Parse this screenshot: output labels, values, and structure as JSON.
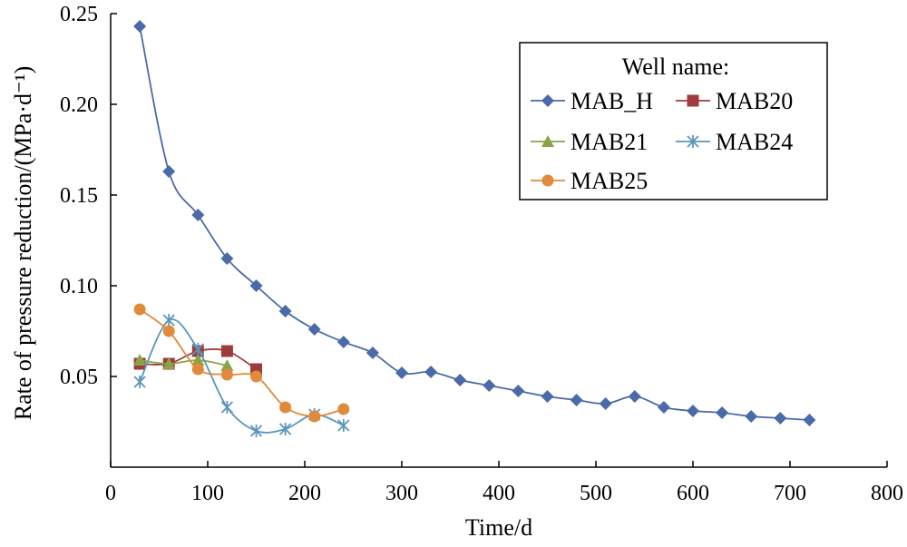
{
  "chart_data": {
    "type": "line",
    "title": "",
    "xlabel": "Time/d",
    "ylabel": "Rate of pressure reduction/(MPa·d⁻¹)",
    "xlim": [
      0,
      800
    ],
    "ylim": [
      0,
      0.25
    ],
    "x_ticks": [
      "0",
      "100",
      "200",
      "300",
      "400",
      "500",
      "600",
      "700",
      "800"
    ],
    "y_ticks": [
      "0.05",
      "0.10",
      "0.15",
      "0.20",
      "0.25"
    ],
    "grid": false,
    "legend": {
      "title": "Well name:",
      "placement": "top-right"
    },
    "series": [
      {
        "name": "MAB_H",
        "color": "#4a6aa8",
        "marker": "diamond",
        "x": [
          30,
          60,
          90,
          120,
          150,
          180,
          210,
          240,
          270,
          300,
          330,
          360,
          390,
          420,
          450,
          480,
          510,
          540,
          570,
          600,
          630,
          660,
          690,
          720
        ],
        "y": [
          0.243,
          0.163,
          0.139,
          0.115,
          0.1,
          0.086,
          0.076,
          0.069,
          0.063,
          0.052,
          0.0525,
          0.048,
          0.045,
          0.042,
          0.039,
          0.037,
          0.035,
          0.039,
          0.033,
          0.031,
          0.03,
          0.028,
          0.027,
          0.026
        ]
      },
      {
        "name": "MAB20",
        "color": "#a03b3d",
        "marker": "square",
        "x": [
          30,
          60,
          90,
          120,
          150
        ],
        "y": [
          0.057,
          0.057,
          0.064,
          0.064,
          0.054
        ]
      },
      {
        "name": "MAB21",
        "color": "#8ba347",
        "marker": "triangle",
        "x": [
          30,
          60,
          90,
          120
        ],
        "y": [
          0.059,
          0.057,
          0.059,
          0.056
        ]
      },
      {
        "name": "MAB24",
        "color": "#5b96b8",
        "marker": "star",
        "x": [
          30,
          60,
          90,
          120,
          150,
          180,
          210,
          240
        ],
        "y": [
          0.047,
          0.081,
          0.065,
          0.033,
          0.02,
          0.021,
          0.029,
          0.023
        ]
      },
      {
        "name": "MAB25",
        "color": "#e08a3c",
        "marker": "circle",
        "x": [
          30,
          60,
          90,
          120,
          150,
          180,
          210,
          240
        ],
        "y": [
          0.087,
          0.075,
          0.054,
          0.051,
          0.05,
          0.033,
          0.028,
          0.032
        ]
      }
    ]
  }
}
